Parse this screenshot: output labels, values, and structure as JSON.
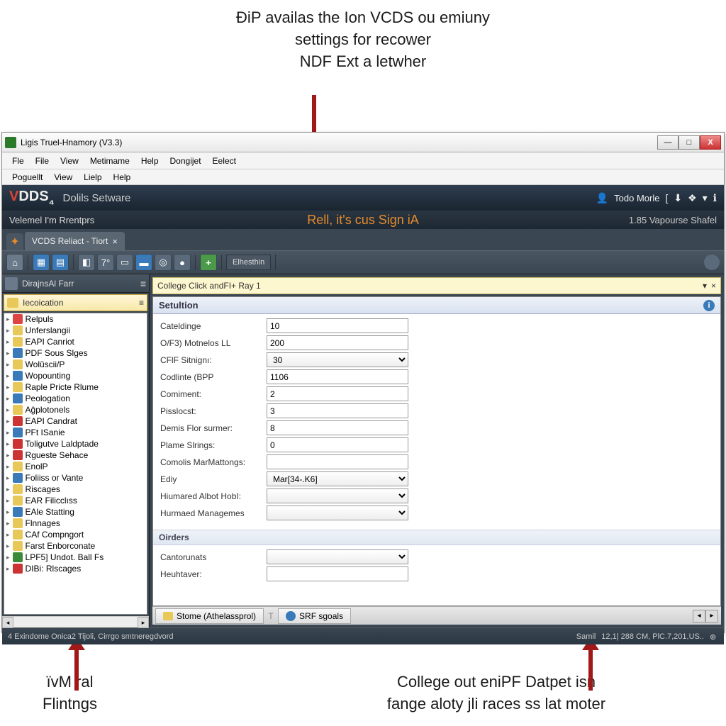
{
  "annotations": {
    "top": "ÐiP availas the Ion VCDS ou emiuny\nsettings for recower\nNDF Ext a letwher",
    "mid_callout": "Rell, it's cus Sign iA",
    "bottom_left": "ïvM ral\nFlintngs",
    "bottom_right": "College out eniPF Datpet isn\nfange aloty jli races ss lat moter"
  },
  "window": {
    "title": "Ligis Truel-Hnamory (V3.3)",
    "btn_min": "—",
    "btn_max": "□",
    "btn_close": "X"
  },
  "menu1": [
    "Fle",
    "File",
    "View",
    "Metimame",
    "Help",
    "Dongijet",
    "Eelect"
  ],
  "menu2": [
    "Poguellt",
    "View",
    "Lielp",
    "Help"
  ],
  "brand": {
    "logo_v": "V",
    "logo_rest": "DDS",
    "logo_sub": "₄",
    "subtitle": "Dolils Setware",
    "user_label": "Todo Morle",
    "icons": [
      "👤",
      "[",
      "⬇",
      "❖",
      "▾",
      "ℹ"
    ]
  },
  "subheader": {
    "left": "Velemel I'm Rrentprs",
    "right": "1.85 Vapourse Shafel"
  },
  "tab": {
    "plus": "✦",
    "label": "VCDS Reliact - Tiort",
    "close": "×"
  },
  "toolbar": {
    "btn_label": "Elhesthin"
  },
  "sidebar": {
    "header": "DirajnsAl Farr",
    "selected": "Iecoication",
    "items": [
      {
        "icon": "ic-star",
        "label": "Relpuls"
      },
      {
        "icon": "ic-fld",
        "label": "Unferslangii"
      },
      {
        "icon": "ic-fld",
        "label": "EAPI Canriot"
      },
      {
        "icon": "ic-blue",
        "label": "PDF Sous Slges"
      },
      {
        "icon": "ic-fld",
        "label": "Wolŭscii/P"
      },
      {
        "icon": "ic-blue",
        "label": "Wopounting"
      },
      {
        "icon": "ic-fld",
        "label": "Raple Pricte Rlume"
      },
      {
        "icon": "ic-blue",
        "label": "Peologation"
      },
      {
        "icon": "ic-fld",
        "label": "Aĝplotonels"
      },
      {
        "icon": "ic-red",
        "label": "EAPI Candrat"
      },
      {
        "icon": "ic-blue",
        "label": "PFt ISanie"
      },
      {
        "icon": "ic-red",
        "label": "Toligutve Laldptade"
      },
      {
        "icon": "ic-red",
        "label": "Rgueste Sehace"
      },
      {
        "icon": "ic-fld",
        "label": "EnolP"
      },
      {
        "icon": "ic-blue",
        "label": "Foliiss or Vante"
      },
      {
        "icon": "ic-fld",
        "label": "Riscages"
      },
      {
        "icon": "ic-fld",
        "label": "EAR Filicclıss"
      },
      {
        "icon": "ic-blue",
        "label": "EAle Statting"
      },
      {
        "icon": "ic-fld",
        "label": "Flnnages"
      },
      {
        "icon": "ic-fld",
        "label": "CAf Compngort"
      },
      {
        "icon": "ic-fld",
        "label": "Farst Enborconate"
      },
      {
        "icon": "ic-grn",
        "label": "LPF5] Undot. Ball Fs"
      },
      {
        "icon": "ic-red",
        "label": "DIBi: Rlscages"
      }
    ]
  },
  "infobar": {
    "text": "College Click andFI+ Ray 1",
    "dd": "▾",
    "close": "×"
  },
  "form": {
    "header": "Setultion",
    "rows": [
      {
        "label": "Cateldinge",
        "value": "10",
        "type": "text"
      },
      {
        "label": "O/F3) Motnelos LL",
        "value": "200",
        "type": "text"
      },
      {
        "label": "CFlF Sitnignı:",
        "value": "30",
        "type": "select"
      },
      {
        "label": "Codlinte (BPP",
        "value": "1106",
        "type": "text"
      },
      {
        "label": "Comiment:",
        "value": "2",
        "type": "text"
      },
      {
        "label": "Pisslocst:",
        "value": "3",
        "type": "text"
      },
      {
        "label": "Demis Flor surmer:",
        "value": "8",
        "type": "text"
      },
      {
        "label": "Plame Slrings:",
        "value": "0",
        "type": "text"
      },
      {
        "label": "Comolis MarMattongs:",
        "value": "",
        "type": "text"
      },
      {
        "label": "Ediy",
        "value": "Mar[34-.K6]",
        "type": "select"
      },
      {
        "label": "Hiumared Albot HobI:",
        "value": "",
        "type": "select"
      },
      {
        "label": "Hurmaed Managemes",
        "value": "",
        "type": "select"
      }
    ],
    "section2": "Oirders",
    "rows2": [
      {
        "label": "Cantorunats",
        "value": "",
        "type": "select"
      },
      {
        "label": "Heuhtaver:",
        "value": "",
        "type": "text"
      }
    ]
  },
  "bottom_tabs": {
    "tab1": "Stome (Athelassprol)",
    "sep": "T",
    "tab2": "SRF sgoals"
  },
  "statusbar": {
    "left": "4 Exindome Onica2 Tijoli, Cirrgo smtneregdvord",
    "r1": "Samil",
    "r2": "12,1| 288 CM, PlC.7,201,US..",
    "zoom": "⊕"
  }
}
